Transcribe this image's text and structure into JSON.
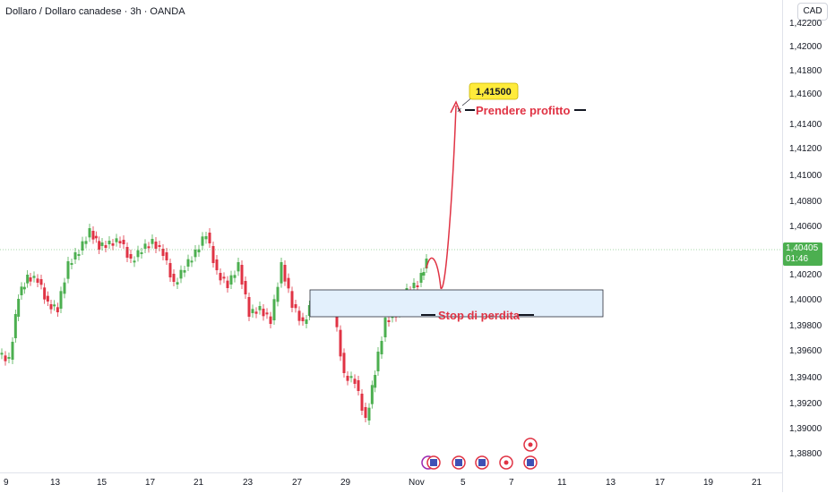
{
  "header": {
    "title": "Dollaro / Dollaro canadese · 3h · OANDA"
  },
  "price_axis": {
    "currency": "CAD",
    "ticks": [
      "1,42200",
      "1,42000",
      "1,41800",
      "1,41600",
      "1,41400",
      "1,41200",
      "1,41000",
      "1,40800",
      "1,40600",
      "1,40200",
      "1,40000",
      "1,39800",
      "1,39600",
      "1,39400",
      "1,39200",
      "1,39000",
      "1,38800"
    ],
    "current_price": "1,40405",
    "countdown": "01:46"
  },
  "time_axis": {
    "labels": [
      "9",
      "13",
      "15",
      "17",
      "21",
      "23",
      "27",
      "29",
      "Nov",
      "5",
      "7",
      "11",
      "13",
      "17",
      "19",
      "21"
    ]
  },
  "annotations": {
    "target_price": "1,41500",
    "take_profit_label": "Prendere profitto",
    "stop_loss_label": "Stop di perdita"
  },
  "events": {
    "icons": [
      "us-flag-icon",
      "us-flag-icon",
      "us-flag-icon",
      "ca-flag-icon",
      "us-flag-icon",
      "ca-flag-icon"
    ]
  },
  "colors": {
    "up": "#4caf50",
    "down": "#e03344",
    "zone_fill": "#e3f0fc",
    "target_badge": "#ffeb3b",
    "price_tag": "#4caf50"
  }
}
